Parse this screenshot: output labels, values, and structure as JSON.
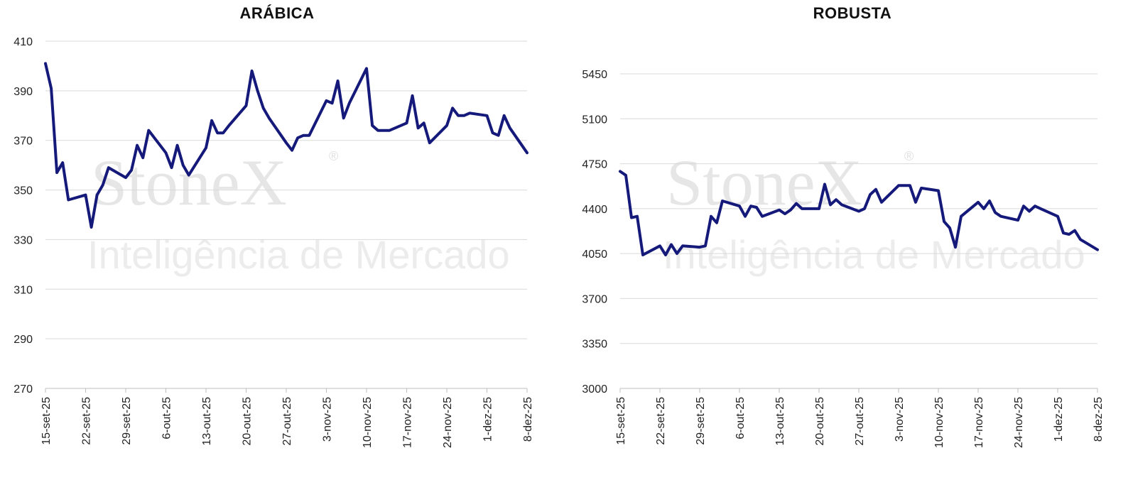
{
  "watermark": {
    "brand": "StoneX",
    "tagline": "Inteligência de Mercado",
    "registered": "®"
  },
  "colors": {
    "line": "#14197a",
    "grid": "#d9d9d9",
    "axis": "#bfbfbf"
  },
  "chart_data": [
    {
      "type": "line",
      "title": "ARÁBICA",
      "xlabel": "",
      "ylabel": "",
      "ylim": [
        270,
        410
      ],
      "yticks": [
        "410",
        "390",
        "370",
        "350",
        "330",
        "310",
        "290",
        "270"
      ],
      "xticks": [
        "15-set-25",
        "22-set-25",
        "29-set-25",
        "6-out-25",
        "13-out-25",
        "20-out-25",
        "27-out-25",
        "3-nov-25",
        "10-nov-25",
        "17-nov-25",
        "24-nov-25",
        "1-dez-25",
        "8-dez-25"
      ],
      "grid": true,
      "x": [
        "2025-09-15",
        "2025-09-16",
        "2025-09-17",
        "2025-09-18",
        "2025-09-19",
        "2025-09-22",
        "2025-09-23",
        "2025-09-24",
        "2025-09-25",
        "2025-09-26",
        "2025-09-29",
        "2025-09-30",
        "2025-10-01",
        "2025-10-02",
        "2025-10-03",
        "2025-10-06",
        "2025-10-07",
        "2025-10-08",
        "2025-10-09",
        "2025-10-10",
        "2025-10-13",
        "2025-10-14",
        "2025-10-15",
        "2025-10-16",
        "2025-10-17",
        "2025-10-20",
        "2025-10-21",
        "2025-10-22",
        "2025-10-23",
        "2025-10-24",
        "2025-10-27",
        "2025-10-28",
        "2025-10-29",
        "2025-10-30",
        "2025-10-31",
        "2025-11-03",
        "2025-11-04",
        "2025-11-05",
        "2025-11-06",
        "2025-11-07",
        "2025-11-10",
        "2025-11-11",
        "2025-11-12",
        "2025-11-13",
        "2025-11-14",
        "2025-11-17",
        "2025-11-18",
        "2025-11-19",
        "2025-11-20",
        "2025-11-21",
        "2025-11-24",
        "2025-11-25",
        "2025-11-26",
        "2025-11-27",
        "2025-11-28",
        "2025-12-01",
        "2025-12-02",
        "2025-12-03",
        "2025-12-04",
        "2025-12-05",
        "2025-12-08"
      ],
      "values": [
        401,
        391,
        357,
        361,
        346,
        348,
        335,
        348,
        352,
        359,
        355,
        358,
        368,
        363,
        374,
        365,
        359,
        368,
        360,
        356,
        367,
        378,
        373,
        373,
        376,
        384,
        398,
        390,
        383,
        379,
        369,
        366,
        371,
        372,
        372,
        386,
        385,
        394,
        379,
        385,
        399,
        376,
        374,
        374,
        374,
        377,
        388,
        375,
        377,
        369,
        376,
        383,
        380,
        380,
        381,
        380,
        373,
        372,
        380,
        375,
        365
      ]
    },
    {
      "type": "line",
      "title": "ROBUSTA",
      "xlabel": "",
      "ylabel": "",
      "ylim": [
        3000,
        5450
      ],
      "yticks": [
        "5450",
        "5100",
        "4750",
        "4400",
        "4050",
        "3700",
        "3350",
        "3000"
      ],
      "xticks": [
        "15-set-25",
        "22-set-25",
        "29-set-25",
        "6-out-25",
        "13-out-25",
        "20-out-25",
        "27-out-25",
        "3-nov-25",
        "10-nov-25",
        "17-nov-25",
        "24-nov-25",
        "1-dez-25",
        "8-dez-25"
      ],
      "grid": true,
      "x": [
        "2025-09-15",
        "2025-09-16",
        "2025-09-17",
        "2025-09-18",
        "2025-09-19",
        "2025-09-22",
        "2025-09-23",
        "2025-09-24",
        "2025-09-25",
        "2025-09-26",
        "2025-09-29",
        "2025-09-30",
        "2025-10-01",
        "2025-10-02",
        "2025-10-03",
        "2025-10-06",
        "2025-10-07",
        "2025-10-08",
        "2025-10-09",
        "2025-10-10",
        "2025-10-13",
        "2025-10-14",
        "2025-10-15",
        "2025-10-16",
        "2025-10-17",
        "2025-10-20",
        "2025-10-21",
        "2025-10-22",
        "2025-10-23",
        "2025-10-24",
        "2025-10-27",
        "2025-10-28",
        "2025-10-29",
        "2025-10-30",
        "2025-10-31",
        "2025-11-03",
        "2025-11-04",
        "2025-11-05",
        "2025-11-06",
        "2025-11-07",
        "2025-11-10",
        "2025-11-11",
        "2025-11-12",
        "2025-11-13",
        "2025-11-14",
        "2025-11-17",
        "2025-11-18",
        "2025-11-19",
        "2025-11-20",
        "2025-11-21",
        "2025-11-24",
        "2025-11-25",
        "2025-11-26",
        "2025-11-27",
        "2025-11-28",
        "2025-12-01",
        "2025-12-02",
        "2025-12-03",
        "2025-12-04",
        "2025-12-05",
        "2025-12-08"
      ],
      "values": [
        4690,
        4660,
        4330,
        4340,
        4040,
        4110,
        4040,
        4120,
        4050,
        4110,
        4100,
        4110,
        4340,
        4290,
        4460,
        4420,
        4340,
        4420,
        4410,
        4340,
        4390,
        4360,
        4390,
        4440,
        4400,
        4400,
        4590,
        4430,
        4470,
        4430,
        4380,
        4400,
        4510,
        4550,
        4450,
        4580,
        4580,
        4580,
        4450,
        4560,
        4540,
        4300,
        4250,
        4100,
        4340,
        4450,
        4400,
        4460,
        4370,
        4340,
        4310,
        4420,
        4380,
        4420,
        4400,
        4340,
        4210,
        4200,
        4230,
        4160,
        4080
      ]
    }
  ]
}
